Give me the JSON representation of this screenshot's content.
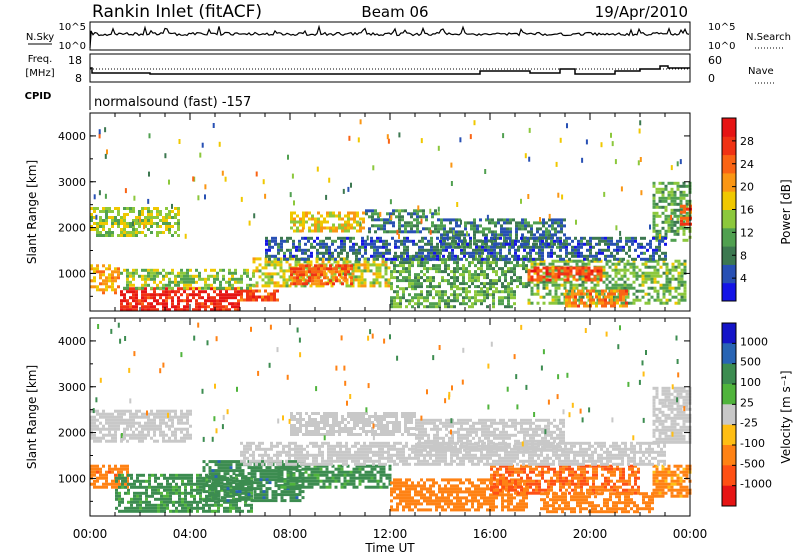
{
  "header": {
    "station": "Rankin Inlet (fitACF)",
    "beam": "Beam 06",
    "date": "19/Apr/2010"
  },
  "strips": {
    "nsky_label": "N.Sky",
    "nsky_ticks": [
      "10^5",
      "10^0"
    ],
    "nsearch_label": "N.Search",
    "nsearch_ticks": [
      "10^5",
      "10^0"
    ],
    "freq_label": "Freq.",
    "freq_unit": "[MHz]",
    "freq_ticks": [
      "18",
      "8"
    ],
    "nave_label": "Nave",
    "nave_ticks": [
      "60",
      "0"
    ],
    "cpid_label": "CPID",
    "cpid_text": "normalsound (fast) -157"
  },
  "colors": {
    "power": [
      "#1414e6",
      "#2850b4",
      "#3c7850",
      "#50a050",
      "#8cc83c",
      "#f0c800",
      "#fa9614",
      "#fa6414",
      "#f03214",
      "#e61414"
    ],
    "velocity": [
      "#e61414",
      "#ff5014",
      "#ff8214",
      "#ffbe14",
      "#c8c8c8",
      "#50b43c",
      "#3c8c50",
      "#2864b4",
      "#1414c8"
    ]
  },
  "chart_data": [
    {
      "type": "heatmap",
      "title": "Power",
      "xlabel": "",
      "ylabel": "Slant Range [km]",
      "x_ticks": [
        "00:00",
        "04:00",
        "08:00",
        "12:00",
        "16:00",
        "20:00",
        "00:00"
      ],
      "y_ticks": [
        "1000",
        "2000",
        "3000",
        "4000"
      ],
      "xlim": [
        0,
        24
      ],
      "ylim": [
        180,
        4500
      ],
      "colorbar_label": "Power [dB]",
      "colorbar_ticks": [
        "4",
        "8",
        "12",
        "16",
        "20",
        "24",
        "28"
      ],
      "clim": [
        0,
        32
      ],
      "regions": [
        {
          "t": [
            1.2,
            6.0
          ],
          "r": [
            180,
            700
          ],
          "v": 29
        },
        {
          "t": [
            6.0,
            7.5
          ],
          "r": [
            450,
            650
          ],
          "v": 25
        },
        {
          "t": [
            0.0,
            1.2
          ],
          "r": [
            600,
            1200
          ],
          "v": 20
        },
        {
          "t": [
            1.2,
            6.5
          ],
          "r": [
            700,
            1100
          ],
          "v": 14
        },
        {
          "t": [
            6.5,
            12.0
          ],
          "r": [
            700,
            1350
          ],
          "v": 16
        },
        {
          "t": [
            8.0,
            10.5
          ],
          "r": [
            800,
            1200
          ],
          "v": 24
        },
        {
          "t": [
            12.0,
            17.0
          ],
          "r": [
            250,
            700
          ],
          "v": 12
        },
        {
          "t": [
            12.0,
            17.5
          ],
          "r": [
            700,
            1400
          ],
          "v": 11
        },
        {
          "t": [
            17.5,
            23.8
          ],
          "r": [
            350,
            1300
          ],
          "v": 13
        },
        {
          "t": [
            17.5,
            20.5
          ],
          "r": [
            850,
            1150
          ],
          "v": 26
        },
        {
          "t": [
            19.0,
            21.5
          ],
          "r": [
            300,
            650
          ],
          "v": 22
        },
        {
          "t": [
            0.0,
            3.5
          ],
          "r": [
            1800,
            2450
          ],
          "v": 15
        },
        {
          "t": [
            8.0,
            11.0
          ],
          "r": [
            1950,
            2350
          ],
          "v": 18
        },
        {
          "t": [
            11.0,
            14.0
          ],
          "r": [
            1900,
            2400
          ],
          "v": 9
        },
        {
          "t": [
            14.0,
            19.0
          ],
          "r": [
            1600,
            2200
          ],
          "v": 8
        },
        {
          "t": [
            22.5,
            24.0
          ],
          "r": [
            1700,
            3000
          ],
          "v": 12
        },
        {
          "t": [
            23.6,
            24.0
          ],
          "r": [
            2100,
            2500
          ],
          "v": 26
        },
        {
          "t": [
            7.0,
            23.0
          ],
          "r": [
            1300,
            1800
          ],
          "v": 6
        }
      ]
    },
    {
      "type": "heatmap",
      "title": "Velocity",
      "xlabel": "Time UT",
      "ylabel": "Slant Range [km]",
      "x_ticks": [
        "00:00",
        "04:00",
        "08:00",
        "12:00",
        "16:00",
        "20:00",
        "00:00"
      ],
      "y_ticks": [
        "1000",
        "2000",
        "3000",
        "4000"
      ],
      "xlim": [
        0,
        24
      ],
      "ylim": [
        180,
        4500
      ],
      "colorbar_label": "Velocity [m s⁻¹]",
      "colorbar_ticks": [
        "1000",
        "500",
        "100",
        "25",
        "-25",
        "-100",
        "-500",
        "-1000"
      ],
      "regions": [
        {
          "t": [
            0.0,
            1.5
          ],
          "r": [
            800,
            1300
          ],
          "v": -350
        },
        {
          "t": [
            1.0,
            6.5
          ],
          "r": [
            250,
            1100
          ],
          "v": 150
        },
        {
          "t": [
            4.5,
            8.5
          ],
          "r": [
            500,
            1400
          ],
          "v": 350
        },
        {
          "t": [
            7.5,
            12.0
          ],
          "r": [
            800,
            1300
          ],
          "v": 150
        },
        {
          "t": [
            12.0,
            17.5
          ],
          "r": [
            300,
            1000
          ],
          "v": -200
        },
        {
          "t": [
            16.0,
            22.0
          ],
          "r": [
            700,
            1300
          ],
          "v": -500
        },
        {
          "t": [
            18.0,
            22.5
          ],
          "r": [
            300,
            700
          ],
          "v": -200
        },
        {
          "t": [
            22.5,
            24.0
          ],
          "r": [
            600,
            1300
          ],
          "v": -150
        },
        {
          "t": [
            0.0,
            4.0
          ],
          "r": [
            1800,
            2500
          ],
          "v": 0
        },
        {
          "t": [
            8.0,
            13.0
          ],
          "r": [
            1950,
            2450
          ],
          "v": 0
        },
        {
          "t": [
            13.0,
            19.0
          ],
          "r": [
            1600,
            2300
          ],
          "v": 0
        },
        {
          "t": [
            22.5,
            24.0
          ],
          "r": [
            1800,
            3000
          ],
          "v": 0
        },
        {
          "t": [
            6.0,
            23.0
          ],
          "r": [
            1300,
            1800
          ],
          "v": 0
        }
      ]
    }
  ]
}
